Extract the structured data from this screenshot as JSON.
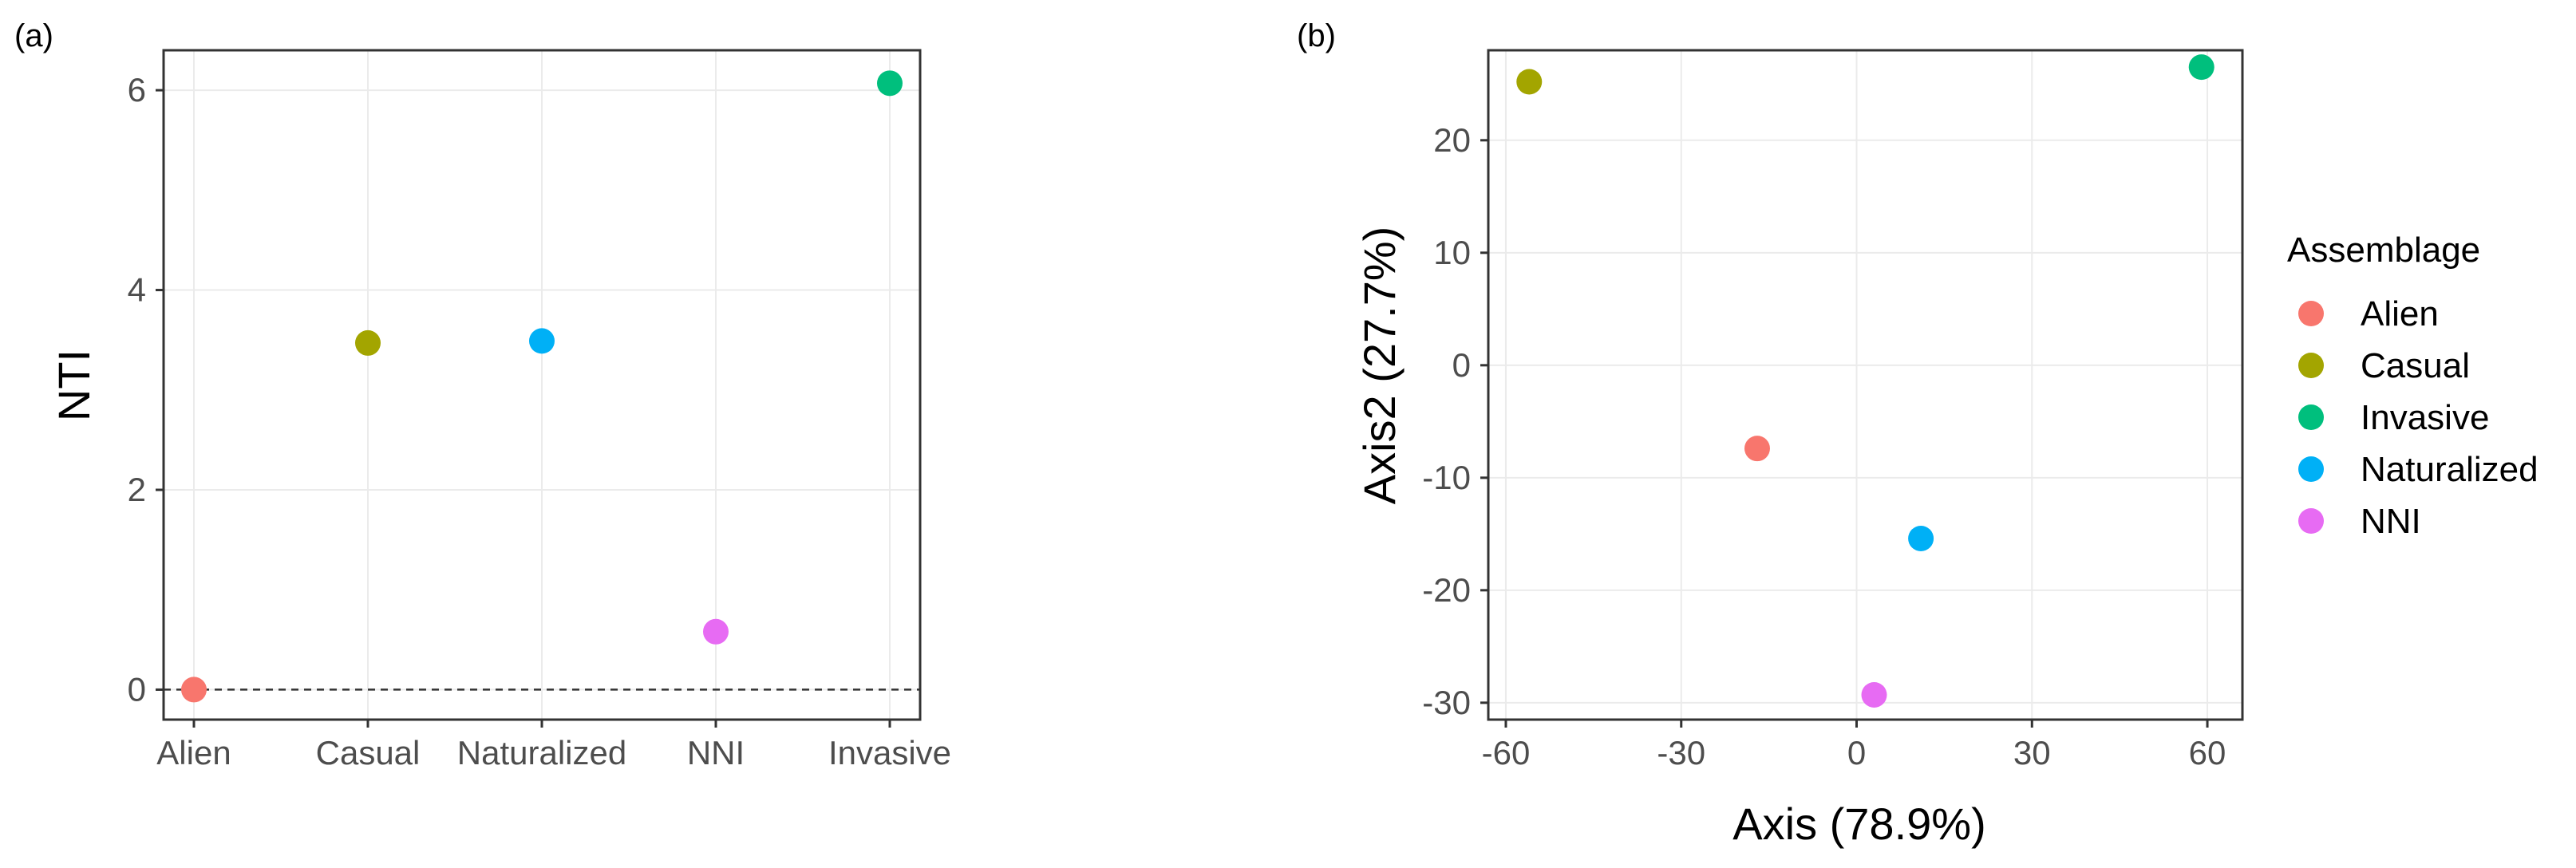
{
  "chart_data": [
    {
      "type": "scatter",
      "panel_label": "(a)",
      "xlabel": "",
      "ylabel": "NTI",
      "categories": [
        "Alien",
        "Casual",
        "Naturalized",
        "NNI",
        "Invasive"
      ],
      "ylim": [
        -0.3,
        6.4
      ],
      "yticks": [
        0,
        2,
        4,
        6
      ],
      "reference_line": {
        "y": 0,
        "style": "dashed"
      },
      "grid": true,
      "points": [
        {
          "category": "Alien",
          "value": 0.0,
          "group": "Alien"
        },
        {
          "category": "Casual",
          "value": 3.47,
          "group": "Casual"
        },
        {
          "category": "Naturalized",
          "value": 3.49,
          "group": "Naturalized"
        },
        {
          "category": "NNI",
          "value": 0.58,
          "group": "NNI"
        },
        {
          "category": "Invasive",
          "value": 6.07,
          "group": "Invasive"
        }
      ]
    },
    {
      "type": "scatter",
      "panel_label": "(b)",
      "xlabel": "Axis (78.9%)",
      "ylabel": "Axis2 (27.7%)",
      "xlim": [
        -63,
        66
      ],
      "ylim": [
        -31.5,
        28
      ],
      "xticks": [
        -60,
        -30,
        0,
        30,
        60
      ],
      "yticks": [
        -30,
        -20,
        -10,
        0,
        10,
        20
      ],
      "grid": true,
      "points": [
        {
          "group": "Alien",
          "x": -17,
          "y": -7.4
        },
        {
          "group": "Casual",
          "x": -56,
          "y": 25.2
        },
        {
          "group": "Invasive",
          "x": 59,
          "y": 26.5
        },
        {
          "group": "Naturalized",
          "x": 11,
          "y": -15.4
        },
        {
          "group": "NNI",
          "x": 3,
          "y": -29.3
        }
      ],
      "legend": {
        "title": "Assemblage",
        "position": "right",
        "entries": [
          "Alien",
          "Casual",
          "Invasive",
          "Naturalized",
          "NNI"
        ]
      }
    }
  ],
  "colors": {
    "Alien": "#F8766D",
    "Casual": "#A3A500",
    "Invasive": "#00BF7D",
    "Naturalized": "#00B0F6",
    "NNI": "#E76BF3"
  }
}
